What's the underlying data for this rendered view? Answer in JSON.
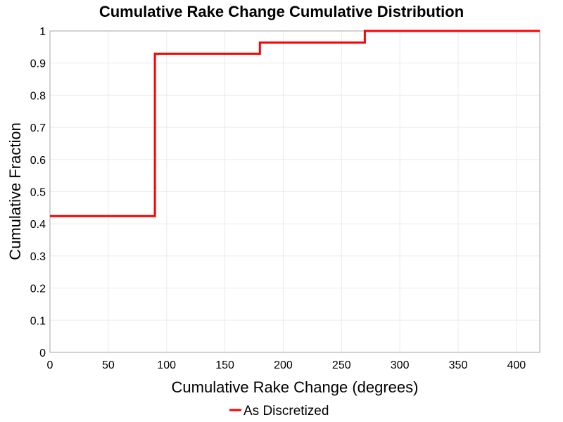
{
  "chart_data": {
    "type": "line",
    "title": "Cumulative Rake Change Cumulative Distribution",
    "xlabel": "Cumulative Rake Change (degrees)",
    "ylabel": "Cumulative Fraction",
    "xlim": [
      0,
      420
    ],
    "ylim": [
      0,
      1
    ],
    "xticks": [
      0,
      50,
      100,
      150,
      200,
      250,
      300,
      350,
      400
    ],
    "yticks": [
      0,
      0.1,
      0.2,
      0.3,
      0.4,
      0.5,
      0.6,
      0.7,
      0.8,
      0.9,
      1
    ],
    "xtick_labels": [
      "0",
      "50",
      "100",
      "150",
      "200",
      "250",
      "300",
      "350",
      "400"
    ],
    "ytick_labels": [
      "0",
      "0.1",
      "0.2",
      "0.3",
      "0.4",
      "0.5",
      "0.6",
      "0.7",
      "0.8",
      "0.9",
      "1"
    ],
    "grid": true,
    "legend_position": "bottom-center",
    "series": [
      {
        "name": "As Discretized",
        "color": "#ff0000",
        "step": true,
        "x": [
          0,
          90,
          90,
          180,
          180,
          270,
          270,
          420
        ],
        "y": [
          0.424,
          0.424,
          0.929,
          0.929,
          0.964,
          0.964,
          1.0,
          1.0
        ]
      }
    ]
  }
}
